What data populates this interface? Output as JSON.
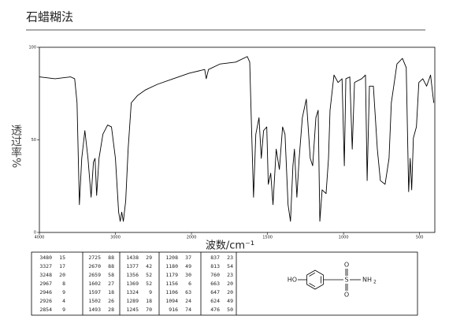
{
  "header": {
    "title": "石蜡糊法"
  },
  "chart_data": {
    "type": "line",
    "color": "#000000",
    "y_label": "透过率%",
    "x_label": "波数/cm⁻¹",
    "xlim": [
      4000,
      400
    ],
    "xticks": [
      4000,
      3000,
      2000,
      1500,
      1000,
      500
    ],
    "ylim": [
      0,
      100
    ],
    "yticks": [
      0,
      50,
      100
    ],
    "x": [
      4000,
      3794,
      3588,
      3536,
      3505,
      3474,
      3443,
      3402,
      3361,
      3320,
      3289,
      3268,
      3247,
      3216,
      3165,
      3103,
      3052,
      3000,
      2958,
      2937,
      2917,
      2896,
      2865,
      2833,
      2792,
      2708,
      2604,
      2448,
      2240,
      2031,
      1913,
      1903,
      1888,
      1811,
      1709,
      1633,
      1617,
      1607,
      1592,
      1577,
      1556,
      1541,
      1526,
      1505,
      1495,
      1479,
      1464,
      1443,
      1422,
      1401,
      1385,
      1365,
      1349,
      1333,
      1323,
      1307,
      1292,
      1271,
      1245,
      1219,
      1203,
      1182,
      1167,
      1156,
      1141,
      1115,
      1099,
      1089,
      1063,
      1036,
      1010,
      995,
      985,
      959,
      943,
      928,
      881,
      856,
      845,
      830,
      804,
      778,
      758,
      727,
      701,
      686,
      649,
      613,
      588,
      572,
      562,
      552,
      541,
      521,
      505,
      479,
      454,
      428,
      407
    ],
    "values": [
      84,
      83,
      84,
      83,
      70,
      15,
      40,
      55,
      40,
      19,
      38,
      40,
      20,
      40,
      53,
      58,
      57,
      40,
      11,
      6,
      11,
      6,
      17,
      45,
      70,
      74,
      77,
      80,
      83,
      86,
      88,
      83,
      88,
      91,
      92,
      95,
      92,
      62,
      19,
      53,
      62,
      40,
      55,
      57,
      26,
      32,
      15,
      45,
      34,
      57,
      53,
      15,
      6,
      36,
      45,
      19,
      40,
      62,
      72,
      40,
      36,
      62,
      66,
      6,
      23,
      21,
      40,
      66,
      85,
      81,
      83,
      36,
      83,
      84,
      45,
      81,
      83,
      85,
      28,
      79,
      79,
      45,
      28,
      26,
      40,
      70,
      91,
      94,
      89,
      22,
      40,
      23,
      51,
      57,
      81,
      83,
      79,
      85,
      70
    ]
  },
  "table": {
    "columns": [
      [
        [
          3480,
          15
        ],
        [
          3327,
          17
        ],
        [
          3248,
          20
        ],
        [
          2967,
          8
        ],
        [
          2946,
          9
        ],
        [
          2926,
          4
        ],
        [
          2854,
          9
        ]
      ],
      [
        [
          2725,
          88
        ],
        [
          2670,
          88
        ],
        [
          2659,
          58
        ],
        [
          1602,
          27
        ],
        [
          1597,
          18
        ],
        [
          1502,
          26
        ],
        [
          1493,
          28
        ]
      ],
      [
        [
          1438,
          29
        ],
        [
          1377,
          42
        ],
        [
          1356,
          52
        ],
        [
          1369,
          52
        ],
        [
          1324,
          9
        ],
        [
          1289,
          18
        ],
        [
          1245,
          70
        ]
      ],
      [
        [
          1208,
          37
        ],
        [
          1180,
          49
        ],
        [
          1179,
          30
        ],
        [
          1156,
          6
        ],
        [
          1106,
          63
        ],
        [
          1094,
          24
        ],
        [
          916,
          74
        ]
      ],
      [
        [
          837,
          23
        ],
        [
          813,
          54
        ],
        [
          760,
          23
        ],
        [
          663,
          20
        ],
        [
          647,
          20
        ],
        [
          624,
          49
        ],
        [
          476,
          50
        ]
      ]
    ]
  },
  "structure": {
    "hydroxyl": "HO",
    "sulfur": "S",
    "oxygen_top": "O",
    "oxygen_bottom": "O",
    "amine": "NH",
    "amine_subscript": "2"
  }
}
